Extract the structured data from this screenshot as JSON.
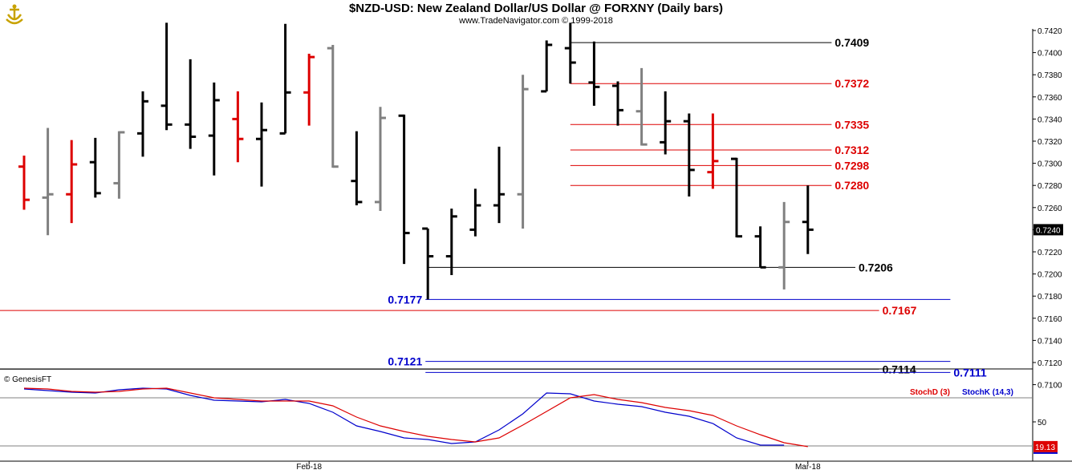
{
  "header": {
    "title": "$NZD-USD:  New Zealand Dollar/US Dollar @ FORXNY  (Daily bars)",
    "subtitle": "www.TradeNavigator.com © 1999-2018"
  },
  "colors": {
    "up": "#000000",
    "down": "#dd0000",
    "inside": "#808080",
    "black_level": "#000000",
    "red_level": "#dd0000",
    "blue_level": "#0000cc",
    "stochK": "#0000cc",
    "stochD": "#dd0000"
  },
  "chart_data": [
    {
      "type": "ohlc",
      "title": "$NZD-USD:  New Zealand Dollar/US Dollar @ FORXNY  (Daily bars)",
      "xlabels": [
        {
          "label": "Feb-18",
          "bar": 12
        },
        {
          "label": "Mar-18",
          "bar": 33
        }
      ],
      "ylim": [
        0.709,
        0.7428
      ],
      "yticks": [
        "0.7100",
        "0.7120",
        "0.7140",
        "0.7160",
        "0.7180",
        "0.7200",
        "0.7220",
        "0.7240",
        "0.7260",
        "0.7280",
        "0.7300",
        "0.7320",
        "0.7340",
        "0.7360",
        "0.7380",
        "0.7400",
        "0.7420"
      ],
      "last_price": "0.7240",
      "bars": [
        {
          "o": 0.7297,
          "h": 0.7307,
          "l": 0.7258,
          "c": 0.7267,
          "color": "red"
        },
        {
          "o": 0.7269,
          "h": 0.7332,
          "l": 0.7235,
          "c": 0.7272,
          "color": "gray"
        },
        {
          "o": 0.7272,
          "h": 0.7321,
          "l": 0.7246,
          "c": 0.7299,
          "color": "red"
        },
        {
          "o": 0.7301,
          "h": 0.7323,
          "l": 0.7269,
          "c": 0.7273,
          "color": "black"
        },
        {
          "o": 0.7282,
          "h": 0.7329,
          "l": 0.7268,
          "c": 0.7328,
          "color": "gray"
        },
        {
          "o": 0.7327,
          "h": 0.7365,
          "l": 0.7306,
          "c": 0.7356,
          "color": "black"
        },
        {
          "o": 0.7352,
          "h": 0.7427,
          "l": 0.733,
          "c": 0.7335,
          "color": "black"
        },
        {
          "o": 0.7335,
          "h": 0.7394,
          "l": 0.7313,
          "c": 0.7324,
          "color": "black"
        },
        {
          "o": 0.7325,
          "h": 0.7373,
          "l": 0.7289,
          "c": 0.7357,
          "color": "black"
        },
        {
          "o": 0.734,
          "h": 0.7365,
          "l": 0.7301,
          "c": 0.7322,
          "color": "red"
        },
        {
          "o": 0.7322,
          "h": 0.7355,
          "l": 0.7279,
          "c": 0.733,
          "color": "black"
        },
        {
          "o": 0.7327,
          "h": 0.7426,
          "l": 0.7327,
          "c": 0.7364,
          "color": "black"
        },
        {
          "o": 0.7364,
          "h": 0.7399,
          "l": 0.7334,
          "c": 0.7396,
          "color": "red"
        },
        {
          "o": 0.7404,
          "h": 0.7407,
          "l": 0.7296,
          "c": 0.7297,
          "color": "gray"
        },
        {
          "o": 0.7284,
          "h": 0.7329,
          "l": 0.7262,
          "c": 0.7265,
          "color": "black"
        },
        {
          "o": 0.7265,
          "h": 0.7351,
          "l": 0.7257,
          "c": 0.7341,
          "color": "gray"
        },
        {
          "o": 0.7343,
          "h": 0.7344,
          "l": 0.7209,
          "c": 0.7237,
          "color": "black"
        },
        {
          "o": 0.7241,
          "h": 0.7241,
          "l": 0.7177,
          "c": 0.7216,
          "color": "black"
        },
        {
          "o": 0.7216,
          "h": 0.7259,
          "l": 0.7199,
          "c": 0.7252,
          "color": "black"
        },
        {
          "o": 0.724,
          "h": 0.7277,
          "l": 0.7234,
          "c": 0.7262,
          "color": "black"
        },
        {
          "o": 0.7262,
          "h": 0.7315,
          "l": 0.7246,
          "c": 0.7272,
          "color": "black"
        },
        {
          "o": 0.7272,
          "h": 0.738,
          "l": 0.7241,
          "c": 0.7367,
          "color": "gray"
        },
        {
          "o": 0.7365,
          "h": 0.7411,
          "l": 0.7365,
          "c": 0.7407,
          "color": "black"
        },
        {
          "o": 0.7404,
          "h": 0.7427,
          "l": 0.7372,
          "c": 0.7391,
          "color": "black"
        },
        {
          "o": 0.7373,
          "h": 0.741,
          "l": 0.7352,
          "c": 0.7369,
          "color": "black"
        },
        {
          "o": 0.737,
          "h": 0.7374,
          "l": 0.7334,
          "c": 0.7348,
          "color": "black"
        },
        {
          "o": 0.7347,
          "h": 0.7386,
          "l": 0.7316,
          "c": 0.7317,
          "color": "gray"
        },
        {
          "o": 0.7319,
          "h": 0.7365,
          "l": 0.7308,
          "c": 0.7338,
          "color": "black"
        },
        {
          "o": 0.7338,
          "h": 0.7345,
          "l": 0.727,
          "c": 0.7294,
          "color": "black"
        },
        {
          "o": 0.7292,
          "h": 0.7345,
          "l": 0.7277,
          "c": 0.7302,
          "color": "red"
        },
        {
          "o": 0.7304,
          "h": 0.7305,
          "l": 0.7233,
          "c": 0.7234,
          "color": "black"
        },
        {
          "o": 0.7234,
          "h": 0.7243,
          "l": 0.7206,
          "c": 0.7206,
          "color": "black"
        },
        {
          "o": 0.7206,
          "h": 0.7265,
          "l": 0.7186,
          "c": 0.7247,
          "color": "gray"
        },
        {
          "o": 0.7247,
          "h": 0.728,
          "l": 0.7218,
          "c": 0.724,
          "color": "black"
        }
      ],
      "levels": [
        {
          "value": 0.7409,
          "label": "0.7409",
          "color": "black",
          "from_bar": 23,
          "to_bar": 34.0,
          "label_side": "right"
        },
        {
          "value": 0.7372,
          "label": "0.7372",
          "color": "red",
          "from_bar": 23,
          "to_bar": 34.0,
          "label_side": "right"
        },
        {
          "value": 0.7335,
          "label": "0.7335",
          "color": "red",
          "from_bar": 23,
          "to_bar": 34.0,
          "label_side": "right"
        },
        {
          "value": 0.7312,
          "label": "0.7312",
          "color": "red",
          "from_bar": 23,
          "to_bar": 34.0,
          "label_side": "right"
        },
        {
          "value": 0.7298,
          "label": "0.7298",
          "color": "red",
          "from_bar": 23,
          "to_bar": 34.0,
          "label_side": "right"
        },
        {
          "value": 0.728,
          "label": "0.7280",
          "color": "red",
          "from_bar": 23,
          "to_bar": 34.0,
          "label_side": "right"
        },
        {
          "value": 0.7206,
          "label": "0.7206",
          "color": "black",
          "from_bar": 17,
          "to_bar": 35.0,
          "label_side": "right"
        },
        {
          "value": 0.7177,
          "label": "0.7177",
          "color": "blue",
          "from_bar": 16.9,
          "to_bar": 39.0,
          "label_side": "left"
        },
        {
          "value": 0.7167,
          "label": "0.7167",
          "color": "red",
          "from_bar": -1,
          "to_bar": 36.0,
          "label_side": "right"
        },
        {
          "value": 0.7121,
          "label": "0.7121",
          "color": "blue",
          "from_bar": 16.9,
          "to_bar": 39.0,
          "label_side": "left"
        },
        {
          "value": 0.7114,
          "label": "0.7114",
          "color": "black",
          "from_bar": -1,
          "to_bar": 36.0,
          "label_side": "right"
        },
        {
          "value": 0.7111,
          "label": "0.7111",
          "color": "blue",
          "from_bar": 16.9,
          "to_bar": 39.0,
          "label_side": "right"
        }
      ]
    },
    {
      "type": "line",
      "title": "",
      "legend": [
        "StochD (3)",
        "StochK (14,3)"
      ],
      "copyright": "© GenesisFT",
      "yticks": [
        "50"
      ],
      "ylim": [
        0,
        100
      ],
      "bands": [
        80,
        20
      ],
      "last_value": "19.13",
      "series": [
        {
          "name": "StochK (14,3)",
          "color": "blue",
          "values": [
            91,
            89,
            87,
            86,
            90,
            92,
            91,
            83,
            77,
            76,
            75,
            78,
            73,
            62,
            45,
            38,
            30,
            28,
            23,
            25,
            40,
            60,
            86,
            85,
            76,
            72,
            69,
            62,
            57,
            48,
            30,
            21,
            21,
            null
          ]
        },
        {
          "name": "StochD (3)",
          "color": "red",
          "values": [
            92,
            91,
            88,
            87,
            88,
            91,
            92,
            86,
            80,
            78,
            76,
            76,
            76,
            70,
            56,
            45,
            38,
            32,
            28,
            25,
            30,
            46,
            63,
            80,
            84,
            78,
            74,
            68,
            64,
            58,
            45,
            34,
            24,
            19.13
          ]
        }
      ]
    }
  ]
}
